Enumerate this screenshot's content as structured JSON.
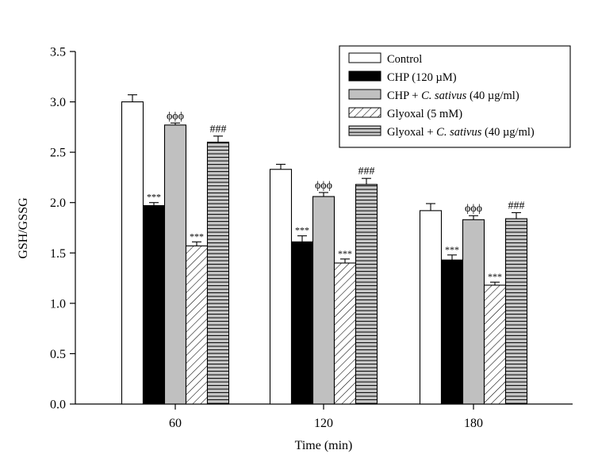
{
  "chart_data": {
    "type": "bar",
    "xlabel": "Time (min)",
    "ylabel": "GSH/GSSG",
    "ylim": [
      0,
      3.5
    ],
    "yticks": [
      "0.0",
      "0.5",
      "1.0",
      "1.5",
      "2.0",
      "2.5",
      "3.0",
      "3.5"
    ],
    "categories": [
      "60",
      "120",
      "180"
    ],
    "legend_position": "top-right",
    "series": [
      {
        "name": "Control",
        "label_parts": [
          {
            "t": "Control",
            "i": false
          }
        ],
        "fill": "white",
        "values": [
          3.0,
          2.33,
          1.92
        ],
        "errors": [
          0.07,
          0.05,
          0.07
        ],
        "annotations": [
          "",
          "",
          ""
        ]
      },
      {
        "name": "CHP (120 µM)",
        "label_parts": [
          {
            "t": "CHP (120 µM)",
            "i": false
          }
        ],
        "fill": "black",
        "values": [
          1.97,
          1.61,
          1.43
        ],
        "errors": [
          0.03,
          0.06,
          0.05
        ],
        "annotations": [
          "***",
          "***",
          "***"
        ]
      },
      {
        "name": "CHP + C. sativus (40 µg/ml)",
        "label_parts": [
          {
            "t": "CHP + ",
            "i": false
          },
          {
            "t": "C. sativus",
            "i": true
          },
          {
            "t": " (40 µg/ml)",
            "i": false
          }
        ],
        "fill": "gray",
        "values": [
          2.77,
          2.06,
          1.83
        ],
        "errors": [
          0.02,
          0.04,
          0.04
        ],
        "annotations": [
          "ϕϕϕ",
          "ϕϕϕ",
          "ϕϕϕ"
        ]
      },
      {
        "name": "Glyoxal (5 mM)",
        "label_parts": [
          {
            "t": "Glyoxal (5 mM)",
            "i": false
          }
        ],
        "fill": "diagonal-hatch",
        "values": [
          1.57,
          1.4,
          1.18
        ],
        "errors": [
          0.04,
          0.04,
          0.03
        ],
        "annotations": [
          "***",
          "***",
          "***"
        ]
      },
      {
        "name": "Glyoxal + C. sativus (40 µg/ml)",
        "label_parts": [
          {
            "t": "Glyoxal + ",
            "i": false
          },
          {
            "t": "C. sativus",
            "i": true
          },
          {
            "t": " (40 µg/ml)",
            "i": false
          }
        ],
        "fill": "horizontal-lines",
        "values": [
          2.6,
          2.18,
          1.84
        ],
        "errors": [
          0.06,
          0.06,
          0.06
        ],
        "annotations": [
          "###",
          "###",
          "###"
        ]
      }
    ]
  }
}
